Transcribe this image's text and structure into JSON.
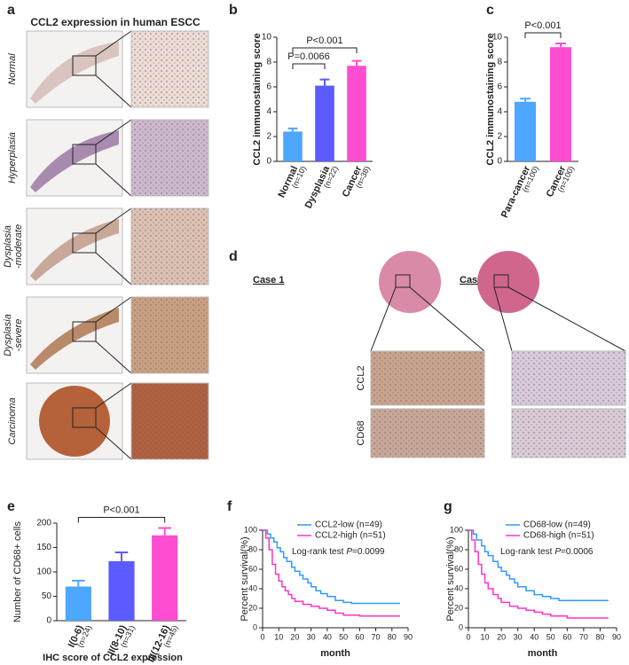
{
  "figure": {
    "panel_labels": [
      "a",
      "b",
      "c",
      "d",
      "e",
      "f",
      "g"
    ],
    "a_title": "CCL2 expression in human ESCC",
    "a_rows": [
      [
        "Normal"
      ],
      [
        "Hyperplasia"
      ],
      [
        "Dysplasia",
        "-moderate"
      ],
      [
        "Dysplasia",
        "-severe"
      ],
      [
        "Carcinoma"
      ]
    ],
    "d_cases": [
      "Case 1",
      "Case 2"
    ],
    "d_rows": [
      "CCL2",
      "CD68"
    ]
  },
  "chart_data": [
    {
      "type": "bar",
      "ylabel": "CCL2 immunostaining score",
      "categories": [
        "Normal",
        "Dysplasia",
        "Cancer"
      ],
      "n_labels": [
        "(n=10)",
        "(n=22)",
        "(n=38)"
      ],
      "values": [
        2.4,
        6.1,
        7.7
      ],
      "errors": [
        0.25,
        0.5,
        0.4
      ],
      "colors": [
        "#4da6ff",
        "#5b5bff",
        "#ff4dd2"
      ],
      "ylim": [
        0,
        10
      ],
      "yticks": [
        0,
        2,
        4,
        6,
        8,
        10
      ],
      "annotations": [
        {
          "text": "P=0.0066",
          "span": [
            0,
            1
          ]
        },
        {
          "text": "P<0.001",
          "span": [
            0,
            2
          ]
        }
      ]
    },
    {
      "type": "bar",
      "ylabel": "CCL2 immunostaining score",
      "categories": [
        "Para-cancer",
        "Cancer"
      ],
      "n_labels": [
        "(n=100)",
        "(n=100)"
      ],
      "values": [
        4.8,
        9.2
      ],
      "errors": [
        0.25,
        0.3
      ],
      "colors": [
        "#4da6ff",
        "#ff4dd2"
      ],
      "ylim": [
        0,
        10
      ],
      "yticks": [
        0,
        2,
        4,
        6,
        8,
        10
      ],
      "annotations": [
        {
          "text": "P<0.001",
          "span": [
            0,
            1
          ]
        }
      ]
    },
    {
      "type": "bar",
      "ylabel": "Number of CD68+ cells",
      "xlabel": "IHC score of CCL2 expression",
      "categories": [
        "I(0-6)",
        "II(8-10)",
        "III(12-16)"
      ],
      "n_labels": [
        "(n=24)",
        "(n=31)",
        "(n=45)"
      ],
      "values": [
        70,
        122,
        175
      ],
      "errors": [
        12,
        18,
        15
      ],
      "colors": [
        "#4da6ff",
        "#5b5bff",
        "#ff4dd2"
      ],
      "ylim": [
        0,
        200
      ],
      "yticks": [
        0,
        50,
        100,
        150,
        200
      ],
      "annotations": [
        {
          "text": "P<0.001",
          "span": [
            0,
            2
          ]
        }
      ]
    },
    {
      "type": "line",
      "step": true,
      "ylabel": "Percent survival(%)",
      "xlabel": "month",
      "xlim": [
        0,
        90
      ],
      "xticks": [
        0,
        10,
        20,
        30,
        40,
        50,
        60,
        70,
        80,
        90
      ],
      "ylim": [
        0,
        100
      ],
      "yticks": [
        0,
        20,
        40,
        60,
        80,
        100
      ],
      "legend": "upper right",
      "annotation": [
        "Log-rank test",
        "P",
        "=0.0099"
      ],
      "series": [
        {
          "name": "CCL2-low (n=49)",
          "color": "#3399ff",
          "x": [
            0,
            3,
            5,
            7,
            9,
            11,
            13,
            15,
            18,
            20,
            23,
            25,
            28,
            30,
            33,
            36,
            40,
            45,
            50,
            55,
            60,
            85
          ],
          "values": [
            100,
            96,
            92,
            88,
            82,
            78,
            72,
            68,
            62,
            58,
            54,
            50,
            46,
            42,
            38,
            35,
            32,
            28,
            26,
            25,
            25,
            25
          ]
        },
        {
          "name": "CCL2-high (n=51)",
          "color": "#ff33cc",
          "x": [
            0,
            2,
            4,
            6,
            8,
            10,
            12,
            14,
            16,
            18,
            20,
            25,
            30,
            35,
            40,
            45,
            50,
            60,
            85
          ],
          "values": [
            100,
            92,
            80,
            65,
            55,
            48,
            42,
            38,
            34,
            30,
            27,
            24,
            22,
            20,
            18,
            15,
            13,
            12,
            12
          ]
        }
      ]
    },
    {
      "type": "line",
      "step": true,
      "ylabel": "Percent survival(%)",
      "xlabel": "month",
      "xlim": [
        0,
        90
      ],
      "xticks": [
        0,
        10,
        20,
        30,
        40,
        50,
        60,
        70,
        80,
        90
      ],
      "ylim": [
        0,
        100
      ],
      "yticks": [
        0,
        20,
        40,
        60,
        80,
        100
      ],
      "legend": "upper right",
      "annotation": [
        "Log-rank test",
        "P",
        "=0.0006"
      ],
      "series": [
        {
          "name": "CD68-low (n=49)",
          "color": "#3399ff",
          "x": [
            0,
            3,
            5,
            8,
            10,
            12,
            15,
            18,
            20,
            23,
            25,
            28,
            30,
            35,
            40,
            45,
            50,
            55,
            60,
            85
          ],
          "values": [
            100,
            96,
            90,
            84,
            78,
            74,
            68,
            62,
            58,
            54,
            50,
            46,
            42,
            38,
            34,
            32,
            30,
            28,
            28,
            28
          ]
        },
        {
          "name": "CD68-high (n=51)",
          "color": "#ff33cc",
          "x": [
            0,
            2,
            4,
            6,
            8,
            10,
            12,
            15,
            18,
            20,
            25,
            30,
            35,
            40,
            45,
            50,
            60,
            85
          ],
          "values": [
            100,
            90,
            78,
            65,
            55,
            46,
            40,
            34,
            30,
            26,
            22,
            20,
            18,
            16,
            14,
            12,
            10,
            10
          ]
        }
      ]
    }
  ]
}
